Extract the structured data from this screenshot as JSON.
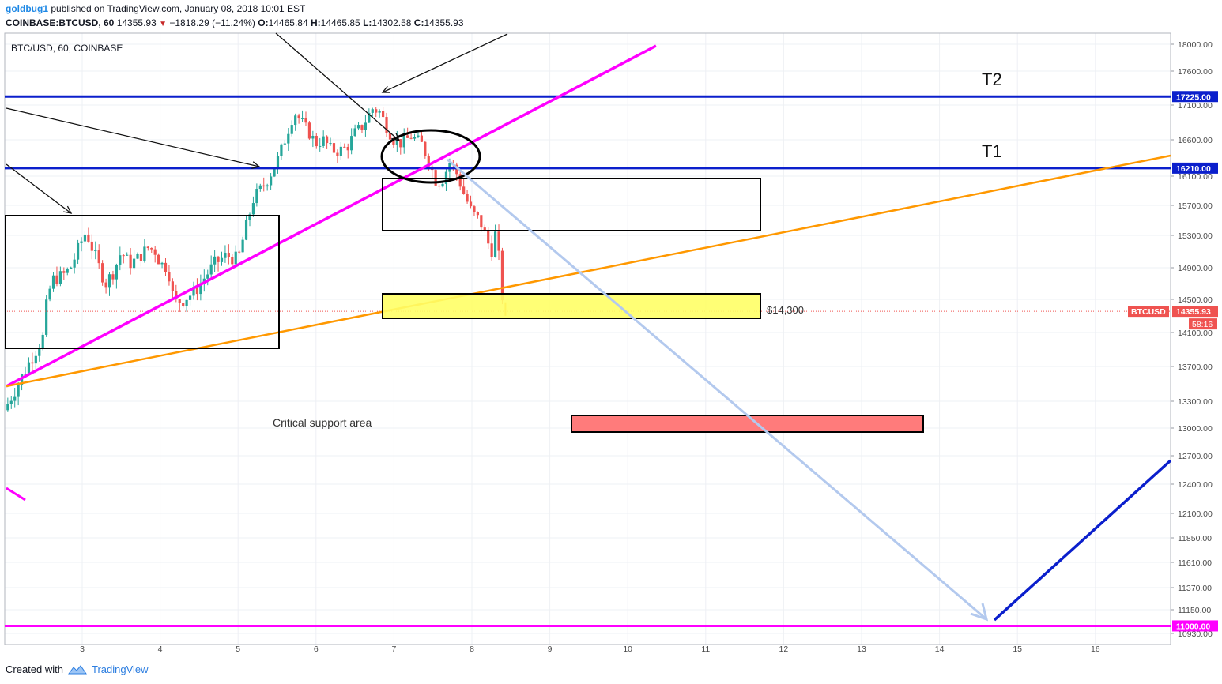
{
  "header": {
    "author": "goldbug1",
    "published": "published on TradingView.com, January 08, 2018 10:01 EST",
    "symbol": "COINBASE:BTCUSD, 60",
    "last": "14355.93",
    "change": "−1818.29 (−11.24%)",
    "o_label": "O:",
    "o": "14465.84",
    "h_label": "H:",
    "h": "14465.85",
    "l_label": "L:",
    "l": "14302.58",
    "c_label": "C:",
    "c": "14355.93"
  },
  "chart_title": "BTC/USD, 60, COINBASE",
  "footer": {
    "created_with": "Created with",
    "brand": "TradingView"
  },
  "colors": {
    "up": "#26a69a",
    "down": "#ef5350",
    "blue_level": "#0b1fcc",
    "magenta": "#ff00ff",
    "orange": "#ff9800",
    "yellow_box": "#ffff66",
    "red_box": "#ff7b7b",
    "forecast_arrow": "#b3c9ee"
  },
  "chart_data": {
    "type": "candlestick",
    "y_ticks": [
      18000,
      17600,
      17100,
      16600,
      16100,
      15700,
      15300,
      14900,
      14500,
      14100,
      13700,
      13300,
      13000,
      12700,
      12400,
      12100,
      11850,
      11610,
      11370,
      11150,
      10930
    ],
    "x_ticks": [
      "3",
      "4",
      "5",
      "6",
      "7",
      "8",
      "9",
      "10",
      "11",
      "12",
      "13",
      "14",
      "15",
      "16"
    ],
    "ylim": [
      10900,
      18100
    ],
    "price_labels": [
      {
        "text": "17225.00",
        "value": 17225,
        "kind": "level"
      },
      {
        "text": "16210.00",
        "value": 16210,
        "kind": "level"
      },
      {
        "text": "11000.00",
        "value": 11000,
        "kind": "magenta"
      }
    ],
    "last_price": {
      "symbol": "BTCUSD",
      "value": "14355.93",
      "countdown": "58:16"
    },
    "levels": [
      {
        "name": "T2",
        "value": 17225
      },
      {
        "name": "T1",
        "value": 16210
      },
      {
        "name": "",
        "value": 11000
      }
    ],
    "annotations": {
      "t2": "T2",
      "t1": "T1",
      "support_label": "$14,300",
      "critical_label": "Critical support area"
    },
    "series": [
      {
        "name": "BTCUSD",
        "path": [
          [
            2.0,
            13200
          ],
          [
            2.15,
            13450
          ],
          [
            2.35,
            13800
          ],
          [
            2.5,
            14050
          ],
          [
            2.55,
            14500
          ],
          [
            2.62,
            14750
          ],
          [
            2.75,
            14800
          ],
          [
            2.85,
            14900
          ],
          [
            3.0,
            15250
          ],
          [
            3.05,
            15350
          ],
          [
            3.2,
            14950
          ],
          [
            3.3,
            14700
          ],
          [
            3.4,
            14850
          ],
          [
            3.5,
            15100
          ],
          [
            3.6,
            14950
          ],
          [
            3.7,
            15000
          ],
          [
            3.85,
            15150
          ],
          [
            3.95,
            15100
          ],
          [
            4.0,
            14950
          ],
          [
            4.1,
            14900
          ],
          [
            4.18,
            14450
          ],
          [
            4.3,
            14500
          ],
          [
            4.45,
            14600
          ],
          [
            4.55,
            14750
          ],
          [
            4.7,
            14950
          ],
          [
            4.85,
            15050
          ],
          [
            5.0,
            15000
          ],
          [
            5.1,
            15400
          ],
          [
            5.2,
            15800
          ],
          [
            5.35,
            16000
          ],
          [
            5.5,
            16300
          ],
          [
            5.6,
            16600
          ],
          [
            5.72,
            17000
          ],
          [
            5.85,
            16800
          ],
          [
            6.0,
            16550
          ],
          [
            6.1,
            16600
          ],
          [
            6.2,
            16450
          ],
          [
            6.3,
            16450
          ],
          [
            6.4,
            16500
          ],
          [
            6.5,
            16700
          ],
          [
            6.6,
            16800
          ],
          [
            6.72,
            17050
          ],
          [
            6.82,
            17000
          ],
          [
            6.92,
            16750
          ],
          [
            7.0,
            16600
          ],
          [
            7.1,
            16550
          ],
          [
            7.22,
            16650
          ],
          [
            7.35,
            16550
          ],
          [
            7.45,
            16300
          ],
          [
            7.55,
            16000
          ],
          [
            7.62,
            16050
          ],
          [
            7.72,
            16300
          ],
          [
            7.8,
            16150
          ],
          [
            7.9,
            15850
          ],
          [
            8.0,
            15600
          ],
          [
            8.1,
            15500
          ],
          [
            8.17,
            15300
          ],
          [
            8.25,
            15100
          ],
          [
            8.32,
            15400
          ],
          [
            8.36,
            14800
          ],
          [
            8.4,
            14450
          ],
          [
            8.43,
            14355
          ]
        ]
      }
    ],
    "x_range": [
      1.95,
      16.95
    ]
  }
}
